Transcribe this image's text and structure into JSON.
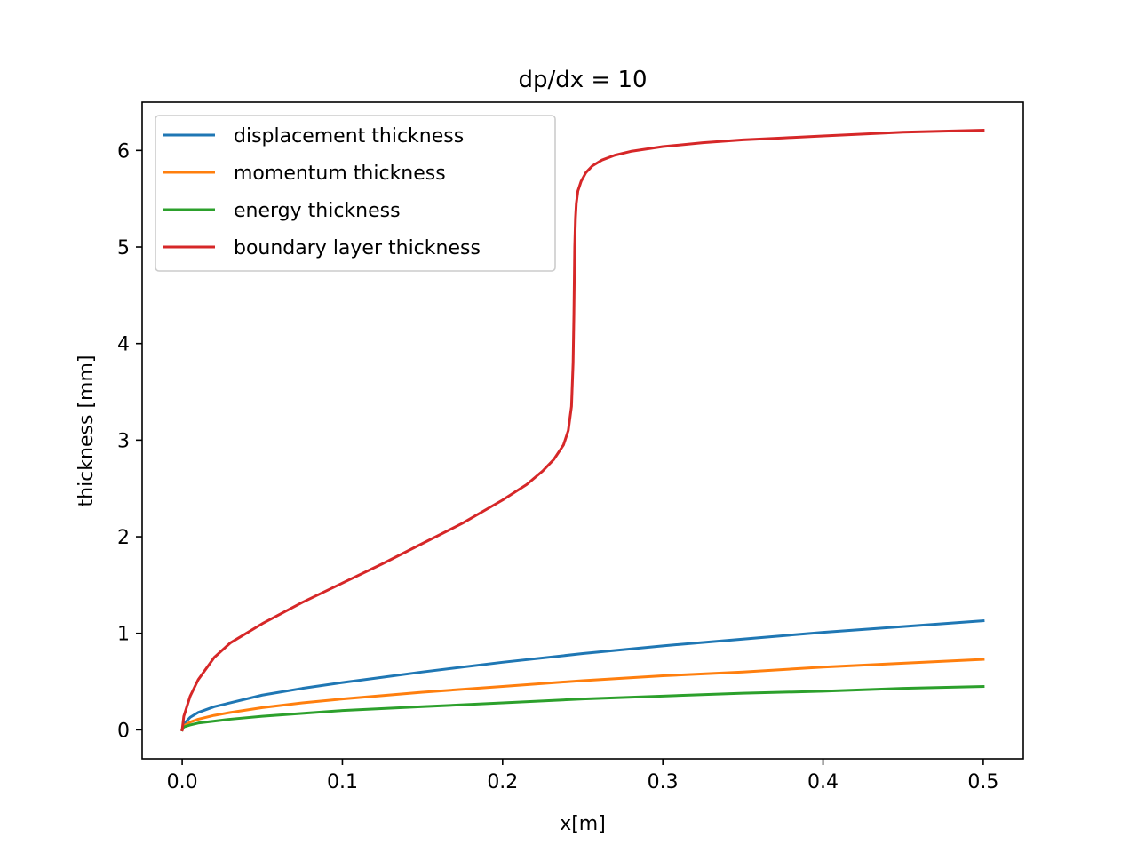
{
  "chart_data": {
    "type": "line",
    "title": "dp/dx = 10",
    "xlabel": "x[m]",
    "ylabel": "thickness [mm]",
    "xlim": [
      -0.025,
      0.525
    ],
    "ylim": [
      -0.3,
      6.5
    ],
    "xticks": [
      0.0,
      0.1,
      0.2,
      0.3,
      0.4,
      0.5
    ],
    "xtick_labels": [
      "0.0",
      "0.1",
      "0.2",
      "0.3",
      "0.4",
      "0.5"
    ],
    "yticks": [
      0,
      1,
      2,
      3,
      4,
      5,
      6
    ],
    "ytick_labels": [
      "0",
      "1",
      "2",
      "3",
      "4",
      "5",
      "6"
    ],
    "grid": false,
    "legend_position": "top-left",
    "series": [
      {
        "name": "displacement thickness",
        "color": "#1f77b4",
        "x": [
          0.0,
          0.001,
          0.005,
          0.01,
          0.02,
          0.03,
          0.05,
          0.075,
          0.1,
          0.15,
          0.2,
          0.25,
          0.3,
          0.35,
          0.4,
          0.45,
          0.5
        ],
        "y": [
          0.0,
          0.06,
          0.13,
          0.18,
          0.24,
          0.28,
          0.36,
          0.43,
          0.49,
          0.6,
          0.7,
          0.79,
          0.87,
          0.94,
          1.01,
          1.07,
          1.13
        ]
      },
      {
        "name": "momentum thickness",
        "color": "#ff7f0e",
        "x": [
          0.0,
          0.001,
          0.005,
          0.01,
          0.02,
          0.03,
          0.05,
          0.075,
          0.1,
          0.15,
          0.2,
          0.25,
          0.3,
          0.35,
          0.4,
          0.45,
          0.5
        ],
        "y": [
          0.0,
          0.04,
          0.08,
          0.11,
          0.15,
          0.18,
          0.23,
          0.28,
          0.32,
          0.39,
          0.45,
          0.51,
          0.56,
          0.6,
          0.65,
          0.69,
          0.73
        ]
      },
      {
        "name": "energy thickness",
        "color": "#2ca02c",
        "x": [
          0.0,
          0.001,
          0.005,
          0.01,
          0.02,
          0.03,
          0.05,
          0.075,
          0.1,
          0.15,
          0.2,
          0.25,
          0.3,
          0.35,
          0.4,
          0.45,
          0.5
        ],
        "y": [
          0.0,
          0.03,
          0.05,
          0.07,
          0.09,
          0.11,
          0.14,
          0.17,
          0.2,
          0.24,
          0.28,
          0.32,
          0.35,
          0.38,
          0.4,
          0.43,
          0.45
        ]
      },
      {
        "name": "boundary layer thickness",
        "color": "#d62728",
        "x": [
          0.0,
          0.001,
          0.005,
          0.01,
          0.02,
          0.03,
          0.05,
          0.075,
          0.1,
          0.125,
          0.15,
          0.175,
          0.2,
          0.215,
          0.225,
          0.232,
          0.238,
          0.241,
          0.243,
          0.244,
          0.2445,
          0.245,
          0.2455,
          0.246,
          0.247,
          0.249,
          0.252,
          0.256,
          0.262,
          0.27,
          0.28,
          0.3,
          0.325,
          0.35,
          0.375,
          0.4,
          0.45,
          0.5
        ],
        "y": [
          0.0,
          0.14,
          0.35,
          0.52,
          0.75,
          0.9,
          1.1,
          1.32,
          1.52,
          1.72,
          1.93,
          2.14,
          2.38,
          2.54,
          2.68,
          2.8,
          2.95,
          3.1,
          3.35,
          3.8,
          4.3,
          5.0,
          5.3,
          5.45,
          5.58,
          5.68,
          5.77,
          5.84,
          5.9,
          5.95,
          5.99,
          6.04,
          6.08,
          6.11,
          6.13,
          6.15,
          6.19,
          6.21
        ]
      }
    ]
  }
}
